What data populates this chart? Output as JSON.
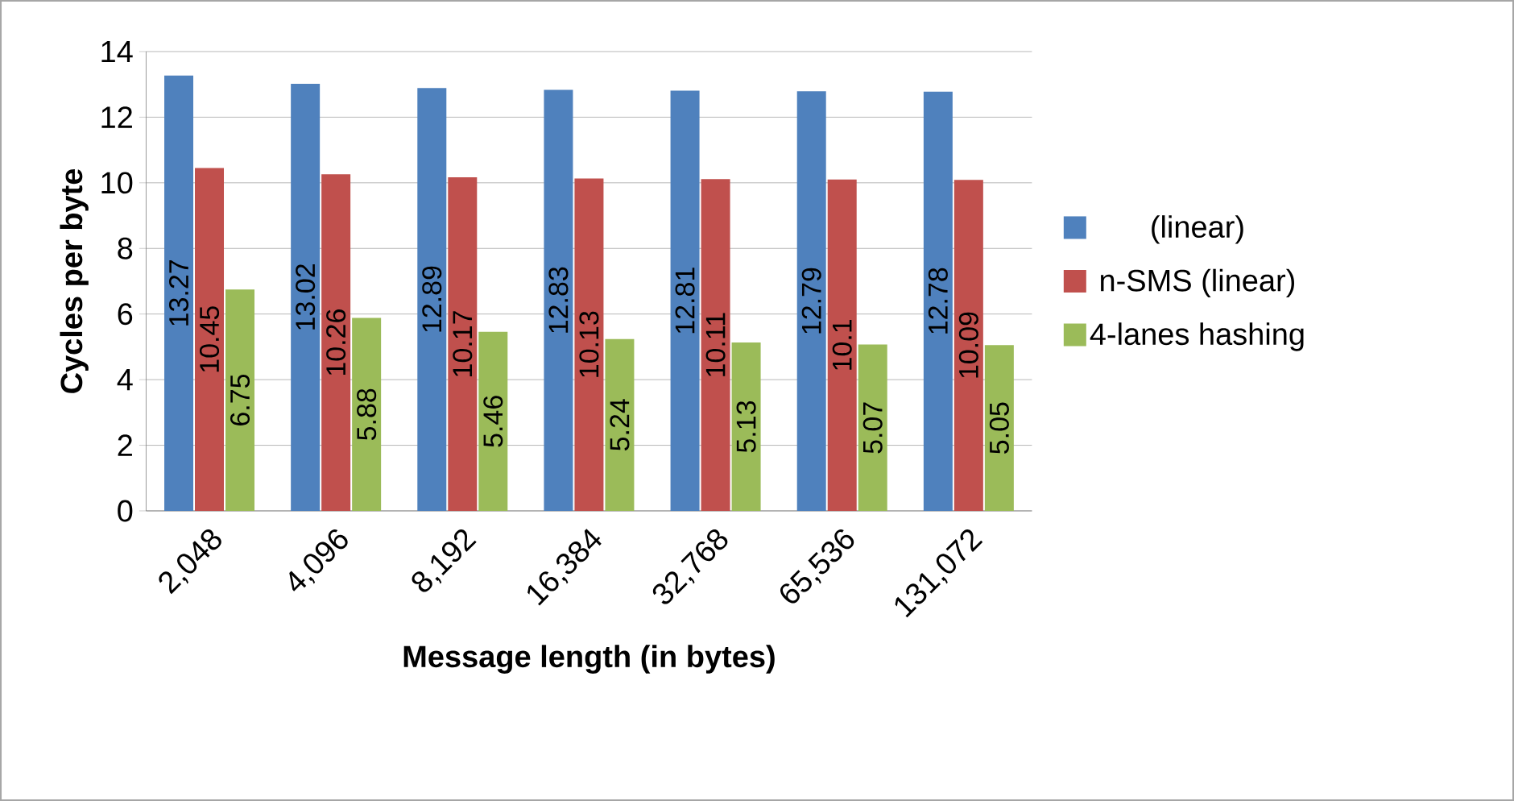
{
  "chart_data": {
    "type": "bar",
    "xlabel": "Message length (in bytes)",
    "ylabel": "Cycles per byte",
    "categories": [
      "2,048",
      "4,096",
      "8,192",
      "16,384",
      "32,768",
      "65,536",
      "131,072"
    ],
    "series": [
      {
        "name": "(linear)",
        "color": "#4f81bd",
        "values": [
          13.27,
          13.02,
          12.89,
          12.83,
          12.81,
          12.79,
          12.78
        ],
        "value_labels": [
          "13.27",
          "13.02",
          "12.89",
          "12.83",
          "12.81",
          "12.79",
          "12.78"
        ]
      },
      {
        "name": "n-SMS (linear)",
        "color": "#c0504d",
        "values": [
          10.45,
          10.26,
          10.17,
          10.13,
          10.11,
          10.1,
          10.09
        ],
        "value_labels": [
          "10.45",
          "10.26",
          "10.17",
          "10.13",
          "10.11",
          "10.1",
          "10.09"
        ]
      },
      {
        "name": "4-lanes hashing",
        "color": "#9bbb59",
        "values": [
          6.75,
          5.88,
          5.46,
          5.24,
          5.13,
          5.07,
          5.05
        ],
        "value_labels": [
          "6.75",
          "5.88",
          "5.46",
          "5.24",
          "5.13",
          "5.07",
          "5.05"
        ]
      }
    ],
    "ylim": [
      0,
      14
    ],
    "yticks": [
      0,
      2,
      4,
      6,
      8,
      10,
      12,
      14
    ],
    "grid": "y",
    "legend": "right"
  }
}
